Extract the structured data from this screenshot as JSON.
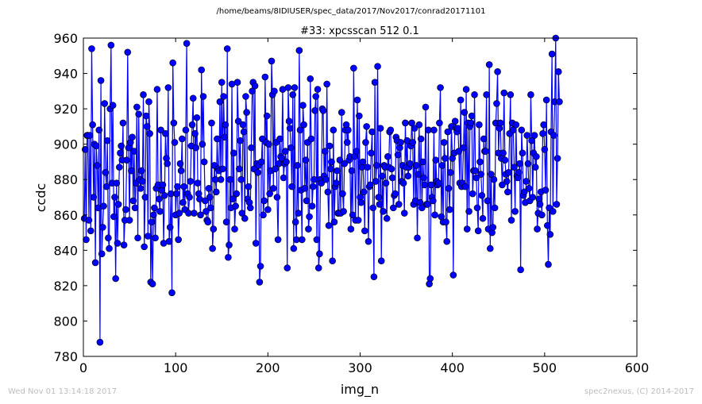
{
  "header": {
    "path": "/home/beams/8IDIUSER/spec_data/2017/Nov2017/conrad20171101"
  },
  "footer": {
    "timestamp": "Wed Nov 01 13:14:18 2017",
    "credit": "spec2nexus, (C) 2014-2017"
  },
  "colors": {
    "series": "#0000ff",
    "marker": "#0000ff"
  },
  "chart_data": {
    "type": "line",
    "title": "#33: xpcsscan 512 0.1",
    "xlabel": "img_n",
    "ylabel": "ccdc",
    "xlim": [
      0,
      600
    ],
    "ylim": [
      780,
      960
    ],
    "xticks": [
      "0",
      "100",
      "200",
      "300",
      "400",
      "500",
      "600"
    ],
    "yticks": [
      "780",
      "800",
      "820",
      "840",
      "860",
      "880",
      "900",
      "920",
      "940",
      "960"
    ],
    "grid": false,
    "markers": "circle",
    "series": [
      {
        "name": "",
        "x_start": 1,
        "x_step": 1,
        "values": [
          858,
          897,
          846,
          905,
          905,
          857,
          905,
          851,
          954,
          911,
          870,
          900,
          833,
          899,
          888,
          864,
          908,
          788,
          936,
          838,
          853,
          865,
          923,
          884,
          876,
          902,
          847,
          841,
          920,
          956,
          878,
          922,
          859,
          870,
          824,
          878,
          844,
          866,
          887,
          895,
          899,
          891,
          912,
          843,
          857,
          863,
          891,
          952,
          898,
          857,
          901,
          885,
          904,
          868,
          896,
          864,
          878,
          921,
          847,
          917,
          880,
          875,
          885,
          879,
          928,
          842,
          870,
          916,
          910,
          848,
          924,
          906,
          822,
          856,
          821,
          860,
          864,
          847,
          875,
          931,
          877,
          869,
          862,
          908,
          874,
          877,
          844,
          871,
          906,
          892,
          889,
          932,
          845,
          853,
          872,
          816,
          946,
          912,
          901,
          860,
          872,
          876,
          846,
          861,
          889,
          885,
          903,
          867,
          876,
          863,
          908,
          957,
          872,
          861,
          870,
          879,
          899,
          911,
          926,
          861,
          906,
          898,
          915,
          878,
          872,
          869,
          860,
          942,
          900,
          927,
          890,
          868,
          862,
          857,
          856,
          875,
          870,
          864,
          912,
          841,
          852,
          888,
          880,
          873,
          903,
          886,
          885,
          924,
          880,
          935,
          886,
          927,
          904,
          911,
          856,
          954,
          836,
          843,
          880,
          864,
          934,
          869,
          895,
          852,
          865,
          872,
          935,
          913,
          886,
          902,
          880,
          861,
          911,
          907,
          858,
          927,
          918,
          869,
          876,
          867,
          864,
          898,
          930,
          935,
          886,
          933,
          844,
          889,
          884,
          888,
          822,
          831,
          890,
          903,
          860,
          868,
          938,
          901,
          916,
          863,
          900,
          872,
          885,
          947,
          928,
          875,
          930,
          886,
          901,
          870,
          846,
          889,
          903,
          893,
          892,
          931,
          881,
          889,
          896,
          890,
          830,
          932,
          913,
          909,
          898,
          876,
          928,
          841,
          932,
          856,
          846,
          888,
          861,
          953,
          908,
          874,
          846,
          922,
          911,
          875,
          891,
          868,
          901,
          852,
          859,
          937,
          903,
          865,
          876,
          880,
          919,
          927,
          846,
          931,
          830,
          838,
          880,
          878,
          920,
          919,
          882,
          896,
          880,
          934,
          873,
          854,
          899,
          886,
          890,
          834,
          908,
          856,
          876,
          878,
          885,
          861,
          861,
          891,
          861,
          918,
          872,
          862,
          889,
          908,
          911,
          901,
          908,
          891,
          893,
          852,
          885,
          860,
          943,
          893,
          857,
          896,
          925,
          857,
          916,
          870,
          867,
          887,
          890,
          873,
          851,
          901,
          910,
          887,
          845,
          876,
          877,
          895,
          907,
          864,
          825,
          935,
          879,
          888,
          944,
          870,
          866,
          909,
          834,
          882,
          862,
          888,
          887,
          878,
          858,
          893,
          887,
          907,
          908,
          886,
          881,
          864,
          871,
          872,
          904,
          902,
          894,
          866,
          898,
          901,
          879,
          888,
          878,
          861,
          912,
          887,
          902,
          882,
          887,
          889,
          899,
          912,
          901,
          866,
          909,
          868,
          888,
          847,
          883,
          911,
          867,
          903,
          864,
          890,
          881,
          877,
          921,
          866,
          866,
          908,
          821,
          824,
          877,
          870,
          868,
          908,
          860,
          891,
          879,
          877,
          878,
          912,
          932,
          859,
          888,
          856,
          901,
          892,
          856,
          845,
          907,
          875,
          863,
          884,
          910,
          892,
          826,
          895,
          913,
          909,
          907,
          909,
          896,
          878,
          925,
          876,
          878,
          898,
          918,
          876,
          931,
          852,
          912,
          862,
          910,
          912,
          916,
          872,
          885,
          928,
          885,
          881,
          864,
          851,
          911,
          890,
          883,
          871,
          858,
          903,
          896,
          896,
          928,
          868,
          852,
          945,
          841,
          883,
          850,
          853,
          880,
          864,
          912,
          923,
          941,
          895,
          909,
          912,
          892,
          877,
          895,
          929,
          891,
          883,
          879,
          873,
          884,
          906,
          928,
          857,
          912,
          908,
          887,
          862,
          911,
          882,
          881,
          884,
          889,
          829,
          908,
          895,
          871,
          873,
          867,
          879,
          905,
          889,
          875,
          868,
          928,
          902,
          870,
          895,
          905,
          887,
          893,
          852,
          861,
          869,
          866,
          873,
          860,
          906,
          911,
          897,
          874,
          925,
          854,
          832,
          864,
          849,
          907,
          951,
          862,
          905,
          924,
          960,
          866,
          892,
          941,
          924
        ]
      }
    ]
  }
}
